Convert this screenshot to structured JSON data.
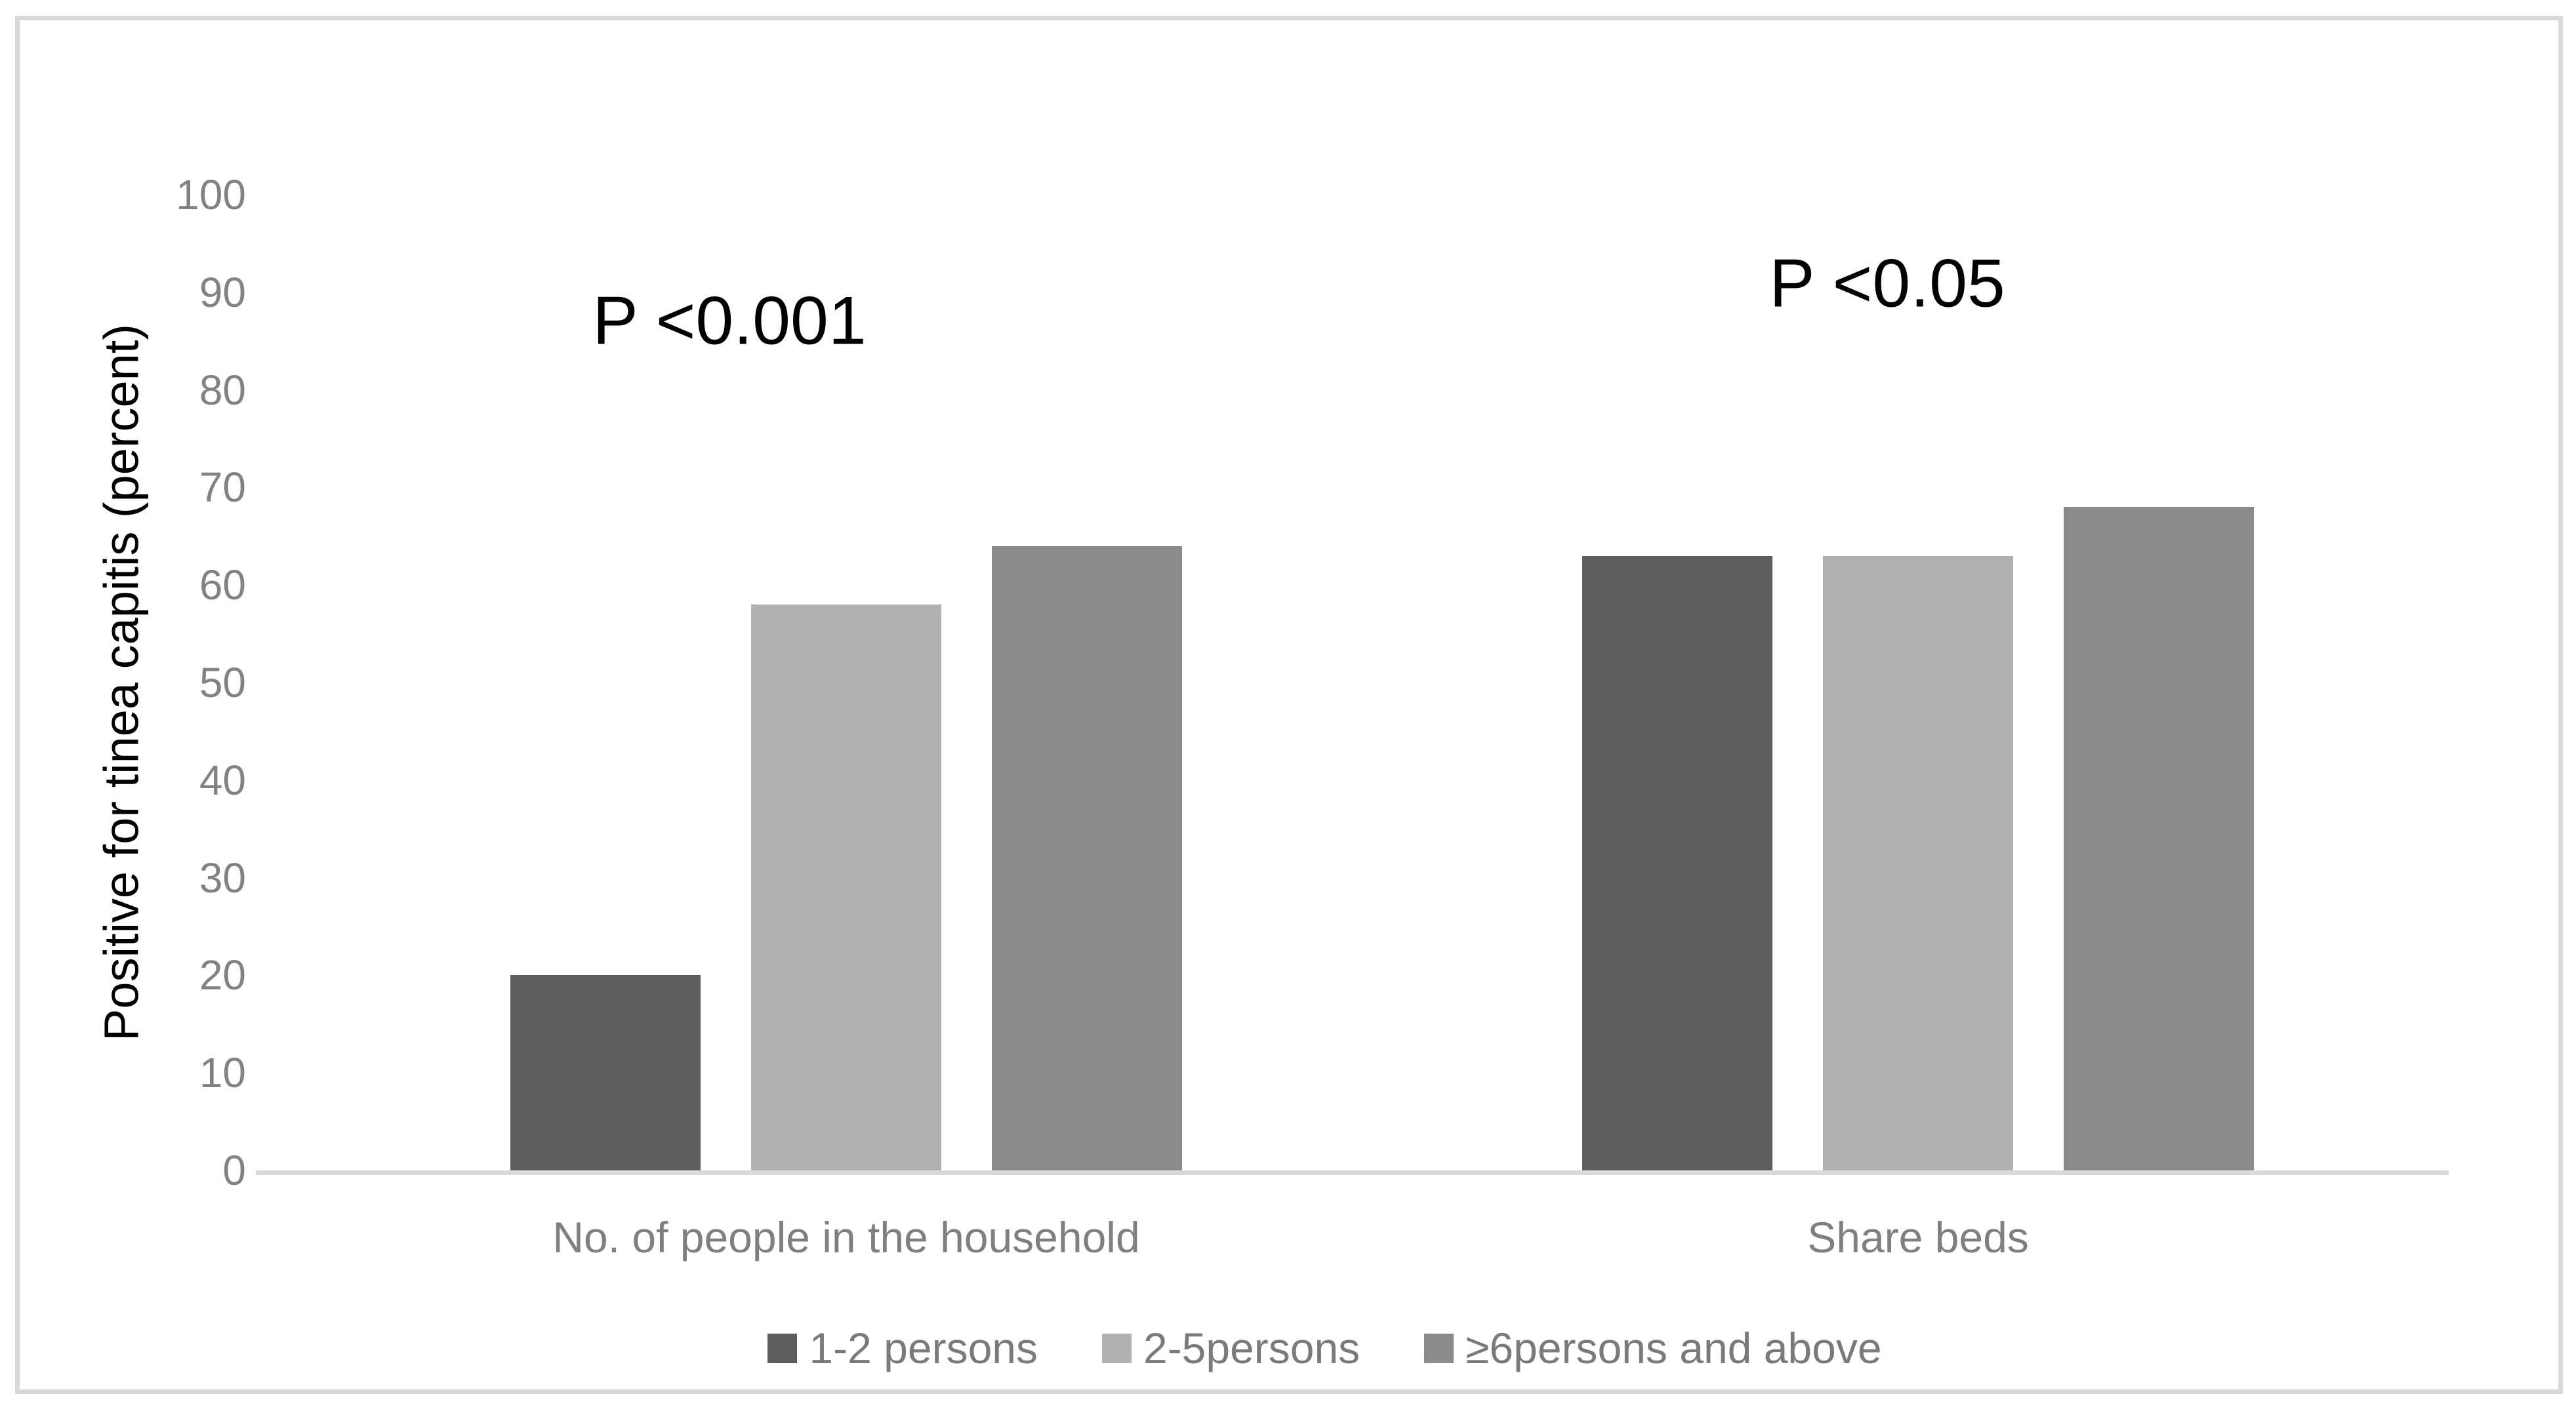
{
  "chart_data": {
    "type": "bar",
    "title": "",
    "xlabel": "",
    "ylabel": "Positive for tinea capitis (percent)",
    "ylim": [
      0,
      100
    ],
    "yticks": [
      0,
      10,
      20,
      30,
      40,
      50,
      60,
      70,
      80,
      90,
      100
    ],
    "grid": false,
    "legend_position": "bottom",
    "categories": [
      "No. of people in the household",
      "Share beds"
    ],
    "series": [
      {
        "name": "1-2 persons",
        "color": "#5d5d5d",
        "values": [
          20,
          63
        ]
      },
      {
        "name": "2-5persons",
        "color": "#b1b1b1",
        "values": [
          58,
          63
        ]
      },
      {
        "name": "≥6persons and above",
        "color": "#8a8a8a",
        "values": [
          64,
          68
        ]
      }
    ],
    "annotations": [
      {
        "text": "P <0.001",
        "category": "No. of people in the household"
      },
      {
        "text": "P <0.05",
        "category": "Share beds"
      }
    ],
    "axis_color": "#d9d9d9",
    "border_color": "#d9d9d9",
    "tick_label_color": "#828282",
    "category_label_color": "#7f7f7f",
    "legend_text_color": "#7a7a7a",
    "annotation_color": "#000000"
  }
}
